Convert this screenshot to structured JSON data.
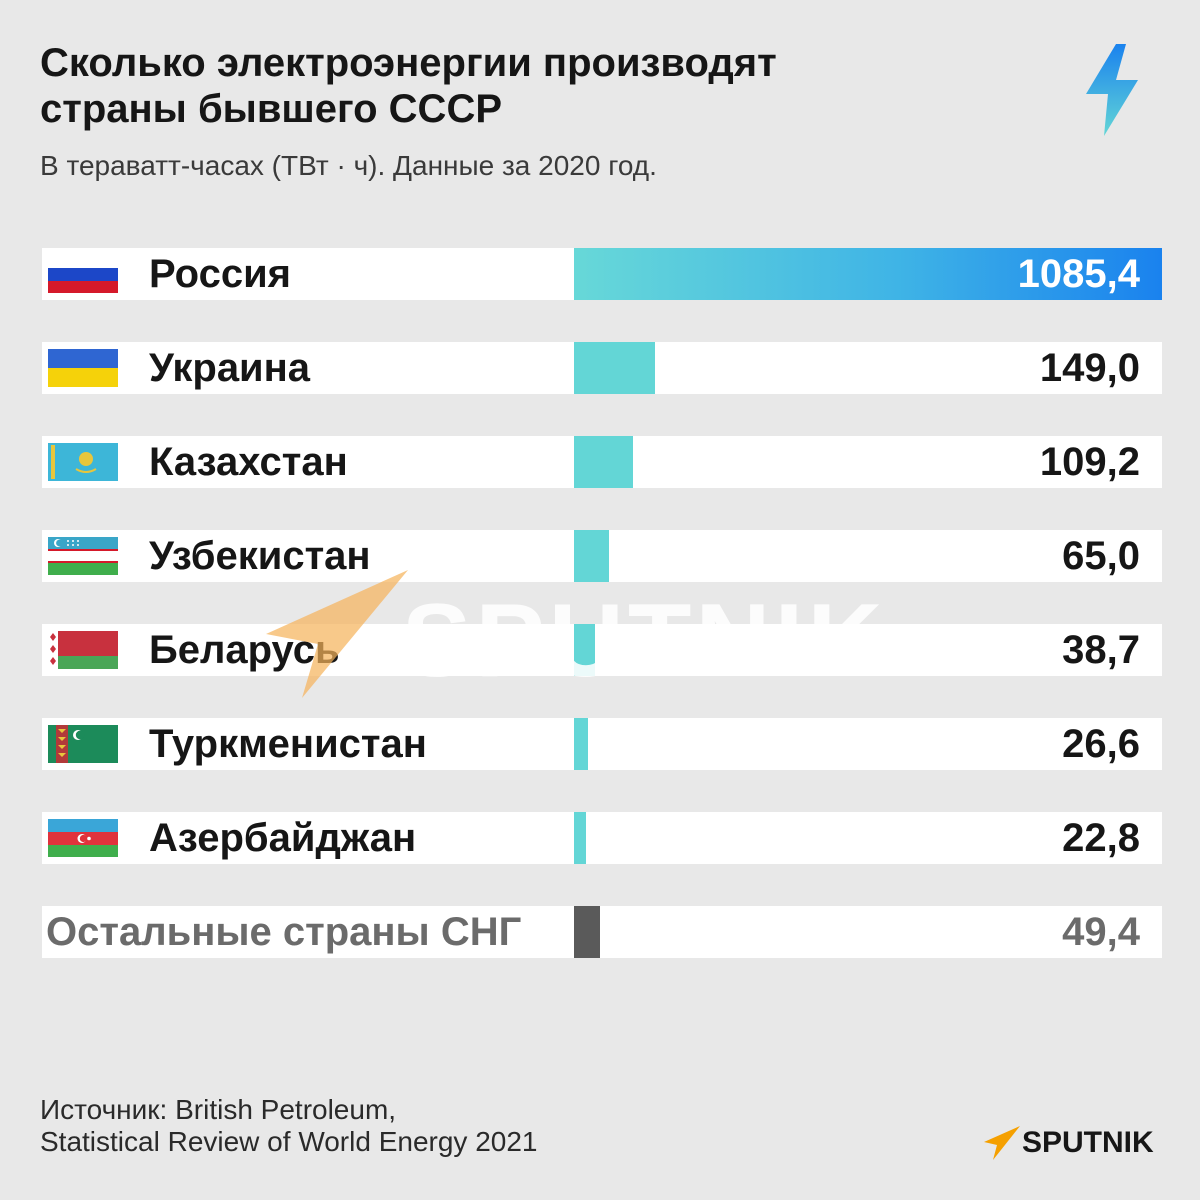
{
  "header": {
    "title_line1": "Сколько электроэнергии производят",
    "title_line2": "страны бывшего СССР",
    "subtitle": "В тераватт-часах (ТВт · ч). Данные за 2020 год."
  },
  "chart_data": {
    "type": "bar",
    "orientation": "horizontal",
    "title": "Сколько электроэнергии производят страны бывшего СССР",
    "subtitle": "В тераватт-часах (ТВт · ч). Данные за 2020 год.",
    "categories": [
      "Россия",
      "Украина",
      "Казахстан",
      "Узбекистан",
      "Беларусь",
      "Туркменистан",
      "Азербайджан",
      "Остальные страны СНГ"
    ],
    "values": [
      1085.4,
      149.0,
      109.2,
      65.0,
      38.7,
      26.6,
      22.8,
      49.4
    ],
    "value_labels": [
      "1085,4",
      "149,0",
      "109,2",
      "65,0",
      "38,7",
      "26,6",
      "22,8",
      "49,4"
    ],
    "xlim": [
      0,
      1085.4
    ],
    "grid": false,
    "legend": "none"
  },
  "rows": [
    {
      "flag": "russia-flag"
    },
    {
      "flag": "ukraine-flag"
    },
    {
      "flag": "kazakhstan-flag"
    },
    {
      "flag": "uzbekistan-flag"
    },
    {
      "flag": "belarus-flag"
    },
    {
      "flag": "turkmenistan-flag"
    },
    {
      "flag": "azerbaijan-flag"
    },
    {
      "flag": ""
    }
  ],
  "colors": {
    "background": "#e8e8e8",
    "bar": "#63d6d6",
    "bar_top_gradient_end": "#1a82ee",
    "bar_other": "#5a5a5a",
    "bolt_top": "#1a82ee",
    "bolt_bottom": "#63d6d6",
    "logo_orange": "#f5a000"
  },
  "watermark": {
    "text": "SPUTNIK",
    "icon": "sputnik-arrow-icon"
  },
  "source": {
    "line1": "Источник: British Petroleum,",
    "line2": "Statistical Review of World Energy 2021"
  },
  "logo": {
    "text": "SPUTNIK",
    "icon": "sputnik-arrow-icon"
  }
}
